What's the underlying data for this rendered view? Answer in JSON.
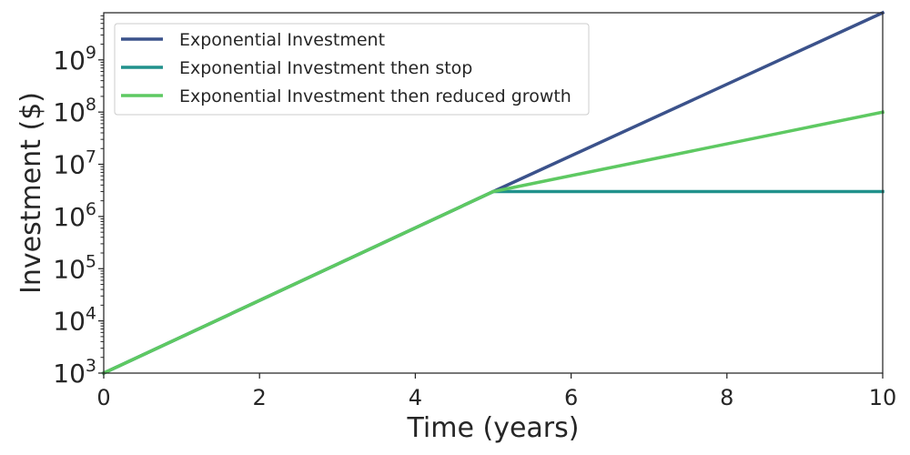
{
  "chart_data": {
    "type": "line",
    "xlabel": "Time (years)",
    "ylabel": "Investment ($)",
    "xlim": [
      0,
      10
    ],
    "ylim": [
      1000,
      8000000000
    ],
    "yscale": "log",
    "grid": false,
    "legend_position": "top-left",
    "x_ticks": [
      0,
      2,
      4,
      6,
      8,
      10
    ],
    "y_ticks": [
      1000,
      10000,
      100000,
      1000000,
      10000000,
      100000000,
      1000000000
    ],
    "y_tick_exponents": [
      "3",
      "4",
      "5",
      "6",
      "7",
      "8",
      "9"
    ],
    "y_tick_base": "10",
    "series": [
      {
        "name": "Exponential Investment",
        "color": "#3b528b",
        "x": [
          0,
          5,
          10
        ],
        "y": [
          1000,
          3000000,
          8000000000
        ]
      },
      {
        "name": "Exponential Investment then stop",
        "color": "#21918c",
        "x": [
          0,
          5,
          10
        ],
        "y": [
          1000,
          3000000,
          3000000
        ]
      },
      {
        "name": "Exponential Investment then reduced growth",
        "color": "#5ec962",
        "x": [
          0,
          5,
          10
        ],
        "y": [
          1000,
          3000000,
          100000000
        ]
      }
    ]
  }
}
